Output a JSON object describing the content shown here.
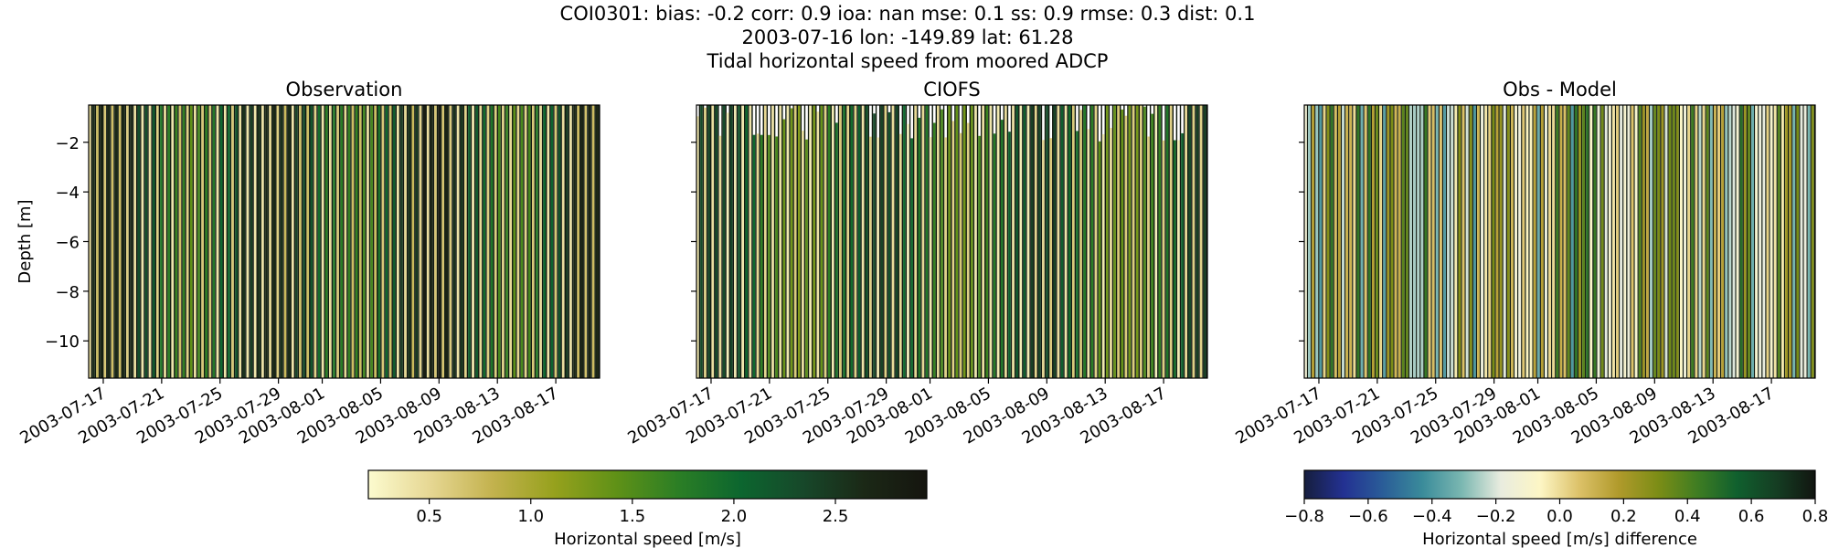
{
  "title": {
    "line1": "COI0301: bias: -0.2  corr: 0.9  ioa: nan  mse: 0.1  ss: 0.9  rmse: 0.3  dist: 0.1",
    "line2": "2003-07-16 lon: -149.89 lat: 61.28",
    "line3": "Tidal horizontal speed from moored ADCP"
  },
  "chart_data": [
    {
      "type": "heatmap",
      "title": "Observation",
      "xlabel": "",
      "ylabel": "Depth [m]",
      "x_tick_labels": [
        "2003-07-17",
        "2003-07-21",
        "2003-07-25",
        "2003-07-29",
        "2003-08-01",
        "2003-08-05",
        "2003-08-09",
        "2003-08-13",
        "2003-08-17"
      ],
      "x_range": [
        "2003-07-16",
        "2003-08-20"
      ],
      "y_ticks": [
        -2,
        -4,
        -6,
        -8,
        -10
      ],
      "ylim": [
        -11.5,
        -0.5
      ],
      "colormap": "speed",
      "clim": [
        0.2,
        2.95
      ],
      "stripe_count": 136,
      "description_values": {
        "typical_speed_range": [
          0.3,
          2.8
        ]
      }
    },
    {
      "type": "heatmap",
      "title": "CIOFS",
      "xlabel": "",
      "ylabel": "",
      "x_tick_labels": [
        "2003-07-17",
        "2003-07-21",
        "2003-07-25",
        "2003-07-29",
        "2003-08-01",
        "2003-08-05",
        "2003-08-09",
        "2003-08-13",
        "2003-08-17"
      ],
      "x_range": [
        "2003-07-16",
        "2003-08-20"
      ],
      "y_ticks": [
        -2,
        -4,
        -6,
        -8,
        -10
      ],
      "ylim": [
        -11.5,
        -0.5
      ],
      "colormap": "speed",
      "clim": [
        0.2,
        2.95
      ],
      "stripe_count": 136
    },
    {
      "type": "heatmap",
      "title": "Obs - Model",
      "xlabel": "",
      "ylabel": "",
      "x_tick_labels": [
        "2003-07-17",
        "2003-07-21",
        "2003-07-25",
        "2003-07-29",
        "2003-08-01",
        "2003-08-05",
        "2003-08-09",
        "2003-08-13",
        "2003-08-17"
      ],
      "x_range": [
        "2003-07-16",
        "2003-08-20"
      ],
      "y_ticks": [
        -2,
        -4,
        -6,
        -8,
        -10
      ],
      "ylim": [
        -11.5,
        -0.5
      ],
      "colormap": "diverging",
      "clim": [
        -0.8,
        0.8
      ],
      "stripe_count": 136
    }
  ],
  "colorbars": [
    {
      "label": "Horizontal speed [m/s]",
      "range": [
        0.2,
        2.95
      ],
      "ticks": [
        "0.5",
        "1.0",
        "1.5",
        "2.0",
        "2.5"
      ],
      "tick_values": [
        0.5,
        1.0,
        1.5,
        2.0,
        2.5
      ],
      "colors": [
        "#fcfbcf",
        "#e6d793",
        "#c3b24e",
        "#96a11d",
        "#5f9117",
        "#2b7e25",
        "#0c662f",
        "#17482a",
        "#1b2816",
        "#15150f"
      ]
    },
    {
      "label": "Horizontal speed [m/s] difference",
      "range": [
        -0.8,
        0.8
      ],
      "ticks": [
        "−0.8",
        "−0.6",
        "−0.4",
        "−0.2",
        "0.0",
        "0.2",
        "0.4",
        "0.6",
        "0.8"
      ],
      "tick_values": [
        -0.8,
        -0.6,
        -0.4,
        -0.2,
        0.0,
        0.2,
        0.4,
        0.6,
        0.8
      ],
      "colors": [
        "#161e3e",
        "#233192",
        "#2a5d98",
        "#3a8b9a",
        "#7ab7b1",
        "#e9ecdf",
        "#fdf6c5",
        "#dcc168",
        "#b09a2b",
        "#7c8d16",
        "#3f7d22",
        "#10602e",
        "#153e23",
        "#111510"
      ]
    }
  ]
}
